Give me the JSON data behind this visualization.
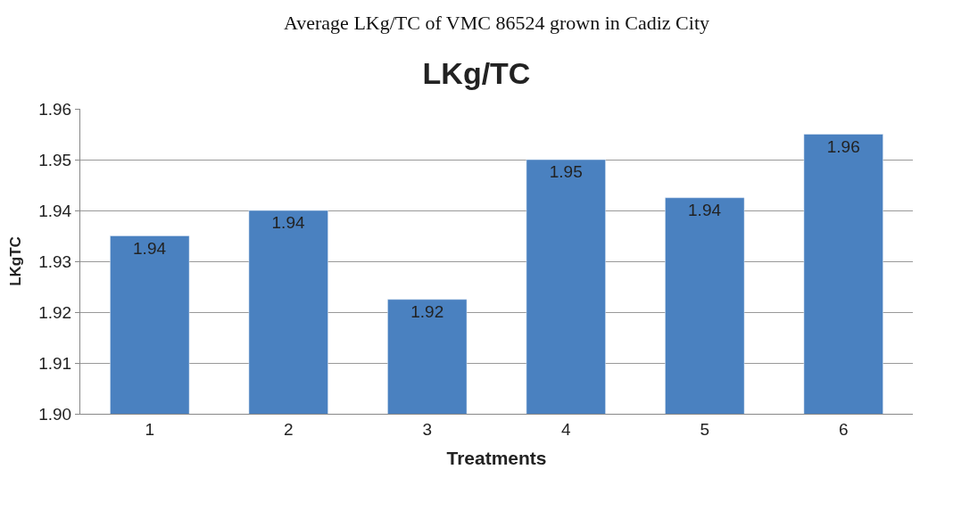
{
  "chart_data": {
    "type": "bar",
    "title": "LKg/TC",
    "xlabel": "Treatments",
    "ylabel": "LKgTC",
    "annotations": [
      "Average LKg/TC of VMC 86524 grown in Cadiz City"
    ],
    "categories": [
      "1",
      "2",
      "3",
      "4",
      "5",
      "6"
    ],
    "values": [
      1.935,
      1.94,
      1.9225,
      1.95,
      1.9425,
      1.955
    ],
    "value_labels": [
      "1.94",
      "1.94",
      "1.92",
      "1.95",
      "1.94",
      "1.96"
    ],
    "color": "#4a81c0",
    "ylim": [
      1.9,
      1.96
    ],
    "yticks": [
      {
        "value": 1.9,
        "label": "1.90"
      },
      {
        "value": 1.91,
        "label": "1.91"
      },
      {
        "value": 1.92,
        "label": "1.92"
      },
      {
        "value": 1.93,
        "label": "1.93"
      },
      {
        "value": 1.94,
        "label": "1.94"
      },
      {
        "value": 1.95,
        "label": "1.95"
      },
      {
        "value": 1.96,
        "label": "1.96"
      }
    ],
    "grid": "y",
    "legend": false
  }
}
